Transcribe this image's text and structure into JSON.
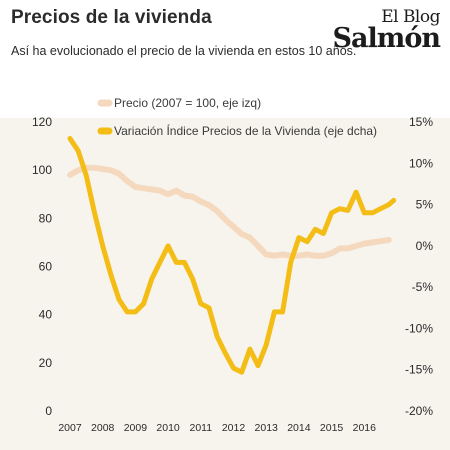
{
  "header": {
    "title": "Precios de la vivienda",
    "subtitle": "Así ha evolucionado el precio de la vivienda en estos 10 años.",
    "logo_line1": "El Blog",
    "logo_line2": "Salmón"
  },
  "colors": {
    "precio": "#f5d9bf",
    "variacion": "#f4bd16",
    "background": "#f7f4ee"
  },
  "chart_data": {
    "type": "line",
    "x_axis": {
      "range": [
        2007,
        2017
      ],
      "ticks": [
        "2007",
        "2008",
        "2009",
        "2010",
        "2011",
        "2012",
        "2013",
        "2014",
        "2015",
        "2016"
      ]
    },
    "y_left": {
      "range": [
        0,
        120
      ],
      "ticks": [
        "0",
        "20",
        "40",
        "60",
        "80",
        "100",
        "120"
      ]
    },
    "y_right": {
      "range": [
        -20,
        15
      ],
      "ticks": [
        "-20%",
        "-15%",
        "-10%",
        "-5%",
        "0%",
        "5%",
        "10%",
        "15%"
      ]
    },
    "grid": false,
    "legend_position": "top-center",
    "series": [
      {
        "name": "Precio (2007 = 100, eje izq)",
        "axis": "left",
        "x": [
          2007.0,
          2007.25,
          2007.5,
          2007.75,
          2008.0,
          2008.25,
          2008.5,
          2008.75,
          2009.0,
          2009.25,
          2009.5,
          2009.75,
          2010.0,
          2010.25,
          2010.5,
          2010.75,
          2011.0,
          2011.25,
          2011.5,
          2011.75,
          2012.0,
          2012.25,
          2012.5,
          2012.75,
          2013.0,
          2013.25,
          2013.5,
          2013.75,
          2014.0,
          2014.25,
          2014.5,
          2014.75,
          2015.0,
          2015.25,
          2015.5,
          2015.75,
          2016.0,
          2016.25,
          2016.5,
          2016.75
        ],
        "values": [
          98,
          100,
          101,
          101,
          100.5,
          100,
          98.5,
          95.5,
          93,
          92.5,
          92,
          91.5,
          90,
          91.5,
          89.5,
          89,
          87,
          85.5,
          83,
          79.5,
          76.5,
          73.5,
          72,
          68.5,
          65,
          64.5,
          65,
          64.5,
          64.5,
          65,
          64.5,
          64.5,
          65.5,
          67.5,
          67.5,
          68.5,
          69.5,
          70,
          70.5,
          71
        ]
      },
      {
        "name": "Variación Índice Precios de la Vivienda (eje dcha)",
        "axis": "right",
        "x": [
          2007.0,
          2007.25,
          2007.5,
          2007.75,
          2008.0,
          2008.25,
          2008.5,
          2008.75,
          2009.0,
          2009.25,
          2009.5,
          2009.75,
          2010.0,
          2010.25,
          2010.5,
          2010.75,
          2011.0,
          2011.25,
          2011.5,
          2011.75,
          2012.0,
          2012.25,
          2012.5,
          2012.75,
          2013.0,
          2013.25,
          2013.5,
          2013.75,
          2014.0,
          2014.25,
          2014.5,
          2014.75,
          2015.0,
          2015.25,
          2015.5,
          2015.75,
          2016.0,
          2016.25,
          2016.5,
          2016.75,
          2016.9
        ],
        "values": [
          13,
          11.5,
          8.5,
          4,
          0,
          -3.5,
          -6.5,
          -8,
          -8,
          -7,
          -4,
          -2,
          0,
          -2,
          -2,
          -4,
          -7,
          -7.5,
          -11,
          -13,
          -14.8,
          -15.3,
          -12.5,
          -14.5,
          -12,
          -8,
          -8,
          -2,
          1,
          0.5,
          2,
          1.5,
          4,
          4.5,
          4.3,
          6.5,
          4,
          4,
          4.5,
          5,
          5.5
        ]
      }
    ]
  }
}
